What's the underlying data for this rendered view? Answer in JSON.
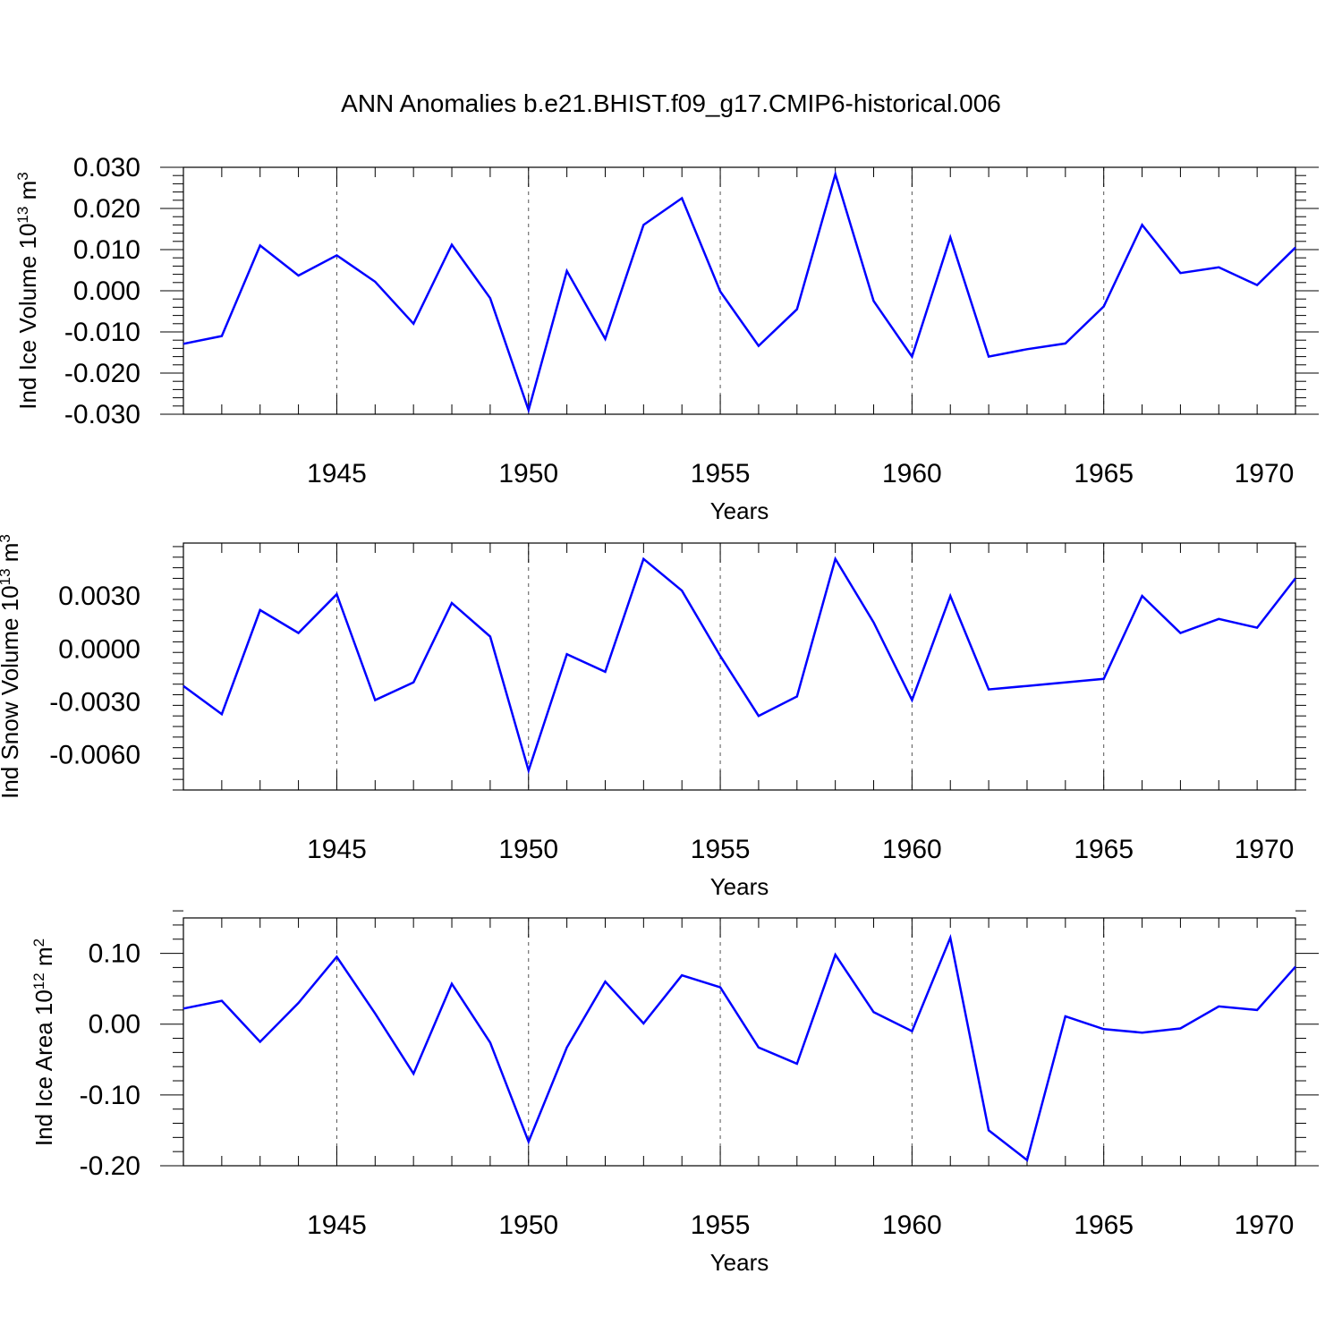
{
  "title": "ANN Anomalies b.e21.BHIST.f09_g17.CMIP6-historical.006",
  "colors": {
    "line": "#0000ff",
    "axis": "#000000",
    "grid": "#555555"
  },
  "chart_data": [
    {
      "type": "line",
      "title": "ANN Anomalies b.e21.BHIST.f09_g17.CMIP6-historical.006",
      "ylabel": "Ind Ice Volume",
      "ylabel_unit_base": "10",
      "ylabel_unit_exp": "13",
      "ylabel_unit": "m",
      "ylabel_unit_unit_exp": "3",
      "xlabel": "Years",
      "xlim": [
        1941,
        1970
      ],
      "ylim": [
        -0.03,
        0.03
      ],
      "yticks": [
        -0.03,
        -0.02,
        -0.01,
        0.0,
        0.01,
        0.02,
        0.03
      ],
      "ytick_labels": [
        "-0.030",
        "-0.020",
        "-0.010",
        "0.000",
        "0.010",
        "0.020",
        "0.030"
      ],
      "xticks": [
        1945,
        1950,
        1955,
        1960,
        1965,
        1970
      ],
      "xtick_labels": [
        "1945",
        "1950",
        "1955",
        "1960",
        "1965",
        "1970"
      ],
      "grid": "dashed vertical at major x ticks",
      "x": [
        1941,
        1942,
        1943,
        1944,
        1945,
        1946,
        1947,
        1948,
        1949,
        1950,
        1951,
        1952,
        1953,
        1954,
        1955,
        1956,
        1957,
        1958,
        1959,
        1960,
        1961,
        1962,
        1963,
        1964,
        1965,
        1966,
        1967,
        1968,
        1969,
        1970
      ],
      "values": [
        -0.0129,
        -0.011,
        0.011,
        0.0037,
        0.0086,
        0.0022,
        -0.008,
        0.0112,
        -0.0018,
        -0.029,
        0.0048,
        -0.0117,
        0.016,
        0.0225,
        -0.0002,
        -0.0134,
        -0.0045,
        0.0283,
        -0.0025,
        -0.016,
        0.013,
        -0.016,
        -0.0142,
        -0.0128,
        -0.0038,
        0.016,
        0.0043,
        0.0057,
        0.0014,
        0.0105
      ]
    },
    {
      "type": "line",
      "ylabel": "Ind Snow Volume",
      "ylabel_unit_base": "10",
      "ylabel_unit_exp": "13",
      "ylabel_unit": "m",
      "ylabel_unit_unit_exp": "3",
      "xlabel": "Years",
      "xlim": [
        1941,
        1970
      ],
      "ylim": [
        -0.008,
        0.006
      ],
      "yticks": [
        -0.006,
        -0.003,
        0.0,
        0.003
      ],
      "ytick_labels": [
        "-0.0060",
        "-0.0030",
        "0.0000",
        "0.0030"
      ],
      "xticks": [
        1945,
        1950,
        1955,
        1960,
        1965,
        1970
      ],
      "xtick_labels": [
        "1945",
        "1950",
        "1955",
        "1960",
        "1965",
        "1970"
      ],
      "grid": "dashed vertical at major x ticks",
      "x": [
        1941,
        1942,
        1943,
        1944,
        1945,
        1946,
        1947,
        1948,
        1949,
        1950,
        1951,
        1952,
        1953,
        1954,
        1955,
        1956,
        1957,
        1958,
        1959,
        1960,
        1961,
        1962,
        1963,
        1964,
        1965,
        1966,
        1967,
        1968,
        1969,
        1970
      ],
      "values": [
        -0.0021,
        -0.0037,
        0.0022,
        0.0009,
        0.0031,
        -0.0029,
        -0.0019,
        0.0026,
        0.0007,
        -0.0069,
        -0.0003,
        -0.0013,
        0.0051,
        0.0033,
        -0.0004,
        -0.0038,
        -0.0027,
        0.0051,
        0.0015,
        -0.0029,
        0.003,
        -0.0023,
        -0.0021,
        -0.0019,
        -0.0017,
        0.003,
        0.0009,
        0.0017,
        0.0012,
        0.004
      ]
    },
    {
      "type": "line",
      "ylabel": "Ind Ice Area",
      "ylabel_unit_base": "10",
      "ylabel_unit_exp": "12",
      "ylabel_unit": "m",
      "ylabel_unit_unit_exp": "2",
      "xlabel": "Years",
      "xlim": [
        1941,
        1970
      ],
      "ylim": [
        -0.2,
        0.15
      ],
      "yticks": [
        -0.2,
        -0.1,
        0.0,
        0.1
      ],
      "ytick_labels": [
        "-0.20",
        "-0.10",
        "0.00",
        "0.10"
      ],
      "xticks": [
        1945,
        1950,
        1955,
        1960,
        1965,
        1970
      ],
      "xtick_labels": [
        "1945",
        "1950",
        "1955",
        "1960",
        "1965",
        "1970"
      ],
      "grid": "dashed vertical at major x ticks",
      "x": [
        1941,
        1942,
        1943,
        1944,
        1945,
        1946,
        1947,
        1948,
        1949,
        1950,
        1951,
        1952,
        1953,
        1954,
        1955,
        1956,
        1957,
        1958,
        1959,
        1960,
        1961,
        1962,
        1963,
        1964,
        1965,
        1966,
        1967,
        1968,
        1969,
        1970
      ],
      "values": [
        0.022,
        0.033,
        -0.025,
        0.03,
        0.095,
        0.015,
        -0.07,
        0.057,
        -0.026,
        -0.166,
        -0.033,
        0.06,
        0.001,
        0.069,
        0.052,
        -0.033,
        -0.056,
        0.098,
        0.017,
        -0.01,
        0.122,
        -0.15,
        -0.192,
        0.011,
        -0.007,
        -0.012,
        -0.006,
        0.025,
        0.02,
        0.081
      ]
    }
  ]
}
